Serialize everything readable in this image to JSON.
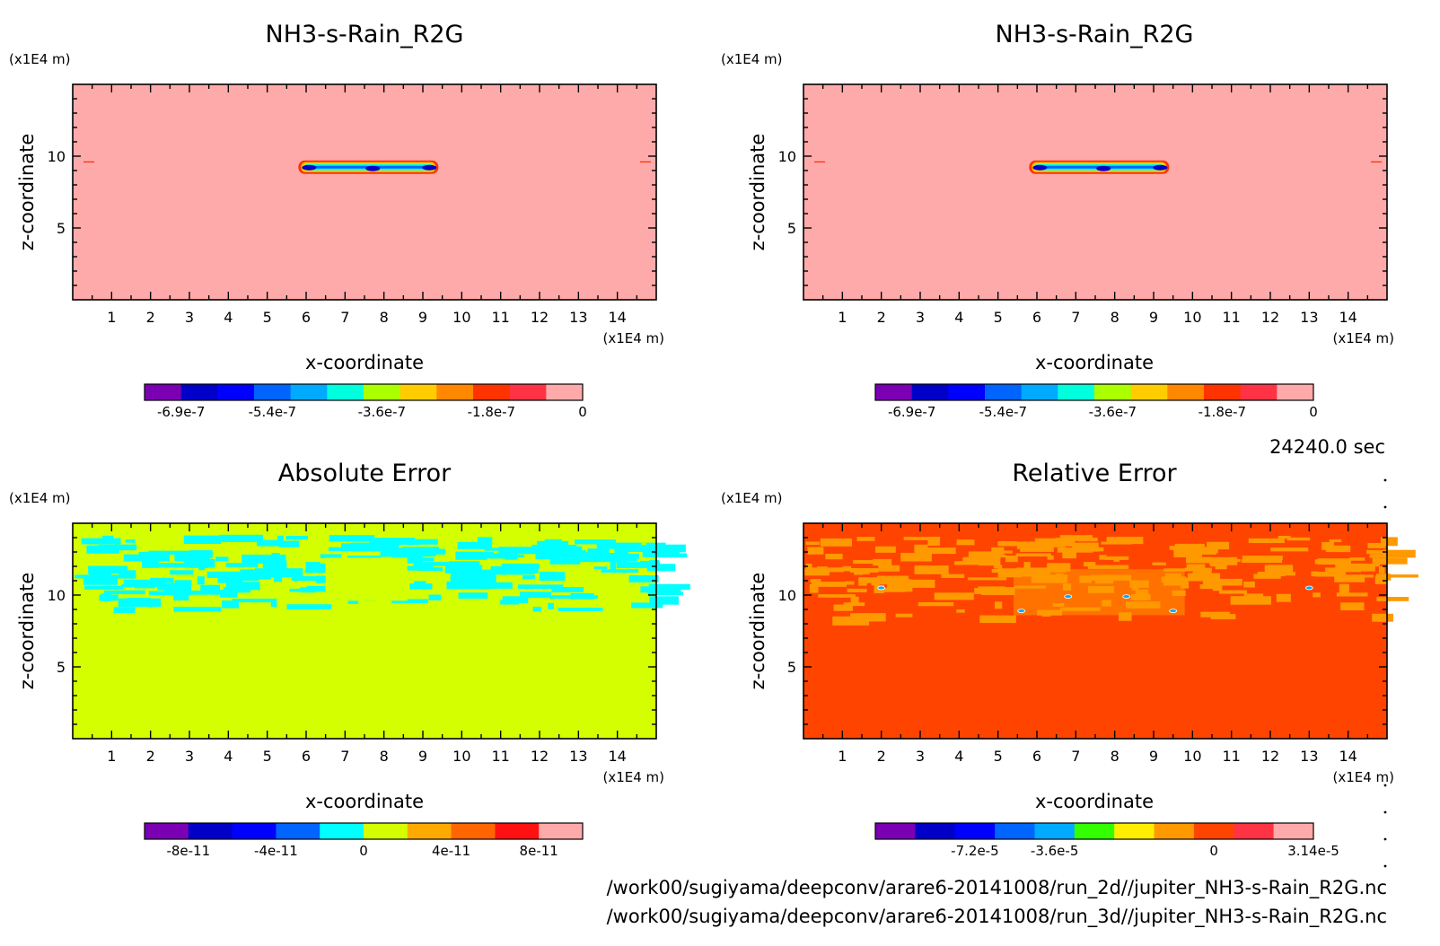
{
  "colors": {
    "pink": "#ffaaaa",
    "yellowgreen": "#d4ff00",
    "cyan": "#00ffff",
    "orange_red": "#ff4400",
    "orange": "#ff9900"
  },
  "time_label": "24240.0 sec",
  "file_paths": [
    "/work00/sugiyama/deepconv/arare6-20141008/run_2d//jupiter_NH3-s-Rain_R2G.nc",
    "/work00/sugiyama/deepconv/arare6-20141008/run_3d//jupiter_NH3-s-Rain_R2G.nc"
  ],
  "chart_data": [
    {
      "type": "heatmap",
      "title": "NH3-s-Rain_R2G",
      "xlabel": "x-coordinate",
      "ylabel": "z-coordinate",
      "x_unit": "(x1E4 m)",
      "y_unit": "(x1E4 m)",
      "xlim": [
        0,
        15
      ],
      "ylim": [
        0,
        15
      ],
      "x_ticks": [
        "1",
        "2",
        "3",
        "4",
        "5",
        "6",
        "7",
        "8",
        "9",
        "10",
        "11",
        "12",
        "13",
        "14"
      ],
      "y_ticks": [
        "5",
        "10"
      ],
      "background_value": 0,
      "features": [
        {
          "kind": "layer",
          "x_range": [
            5.8,
            9.4
          ],
          "z_center": 9.2,
          "min_value": -6.9e-07
        }
      ],
      "colorbar": {
        "colors": [
          "#7b00b4",
          "#0000c8",
          "#0000ff",
          "#0064ff",
          "#00aaff",
          "#00ffdd",
          "#aaff00",
          "#ffcc00",
          "#ff8800",
          "#ff3300",
          "#ff3344",
          "#ffaaaa"
        ],
        "tick_labels": [
          "-6.9e-7",
          "-5.4e-7",
          "-3.6e-7",
          "-1.8e-7",
          "0"
        ]
      }
    },
    {
      "type": "heatmap",
      "title": "NH3-s-Rain_R2G",
      "xlabel": "x-coordinate",
      "ylabel": "z-coordinate",
      "x_unit": "(x1E4 m)",
      "y_unit": "(x1E4 m)",
      "xlim": [
        0,
        15
      ],
      "ylim": [
        0,
        15
      ],
      "x_ticks": [
        "1",
        "2",
        "3",
        "4",
        "5",
        "6",
        "7",
        "8",
        "9",
        "10",
        "11",
        "12",
        "13",
        "14"
      ],
      "y_ticks": [
        "5",
        "10"
      ],
      "background_value": 0,
      "features": [
        {
          "kind": "layer",
          "x_range": [
            5.8,
            9.4
          ],
          "z_center": 9.2,
          "min_value": -6.9e-07
        }
      ],
      "colorbar": {
        "colors": [
          "#7b00b4",
          "#0000c8",
          "#0000ff",
          "#0064ff",
          "#00aaff",
          "#00ffdd",
          "#aaff00",
          "#ffcc00",
          "#ff8800",
          "#ff3300",
          "#ff3344",
          "#ffaaaa"
        ],
        "tick_labels": [
          "-6.9e-7",
          "-5.4e-7",
          "-3.6e-7",
          "-1.8e-7",
          "0"
        ]
      }
    },
    {
      "type": "heatmap",
      "title": "Absolute Error",
      "xlabel": "x-coordinate",
      "ylabel": "z-coordinate",
      "x_unit": "(x1E4 m)",
      "y_unit": "(x1E4 m)",
      "xlim": [
        0,
        15
      ],
      "ylim": [
        0,
        15
      ],
      "x_ticks": [
        "1",
        "2",
        "3",
        "4",
        "5",
        "6",
        "7",
        "8",
        "9",
        "10",
        "11",
        "12",
        "13",
        "14"
      ],
      "y_ticks": [
        "5",
        "10"
      ],
      "background_value": 0,
      "features": [
        {
          "kind": "patches",
          "z_range": [
            9.0,
            14.2
          ],
          "value": -1e-11
        }
      ],
      "colorbar": {
        "colors": [
          "#7b00b4",
          "#0000c8",
          "#0000ff",
          "#0064ff",
          "#00ffff",
          "#d4ff00",
          "#ffaa00",
          "#ff6600",
          "#ff1111",
          "#ffaaaa"
        ],
        "tick_labels": [
          "-8e-11",
          "-4e-11",
          "0",
          "4e-11",
          "8e-11"
        ]
      }
    },
    {
      "type": "heatmap",
      "title": "Relative Error",
      "xlabel": "x-coordinate",
      "ylabel": "z-coordinate",
      "x_unit": "(x1E4 m)",
      "y_unit": "(x1E4 m)",
      "xlim": [
        0,
        15
      ],
      "ylim": [
        0,
        15
      ],
      "x_ticks": [
        "1",
        "2",
        "3",
        "4",
        "5",
        "6",
        "7",
        "8",
        "9",
        "10",
        "11",
        "12",
        "13",
        "14"
      ],
      "y_ticks": [
        "5",
        "10"
      ],
      "background_value": 0,
      "features": [
        {
          "kind": "patches",
          "z_range": [
            8.5,
            14.2
          ],
          "value": 1e-05
        }
      ],
      "colorbar": {
        "colors": [
          "#7b00b4",
          "#0000c8",
          "#0000ff",
          "#0064ff",
          "#00aaff",
          "#33ff00",
          "#ffee00",
          "#ff9900",
          "#ff4400",
          "#ff3344",
          "#ffaaaa"
        ],
        "tick_labels": [
          "-7.2e-5",
          "-3.6e-5",
          "0",
          "3.14e-5"
        ]
      }
    }
  ]
}
